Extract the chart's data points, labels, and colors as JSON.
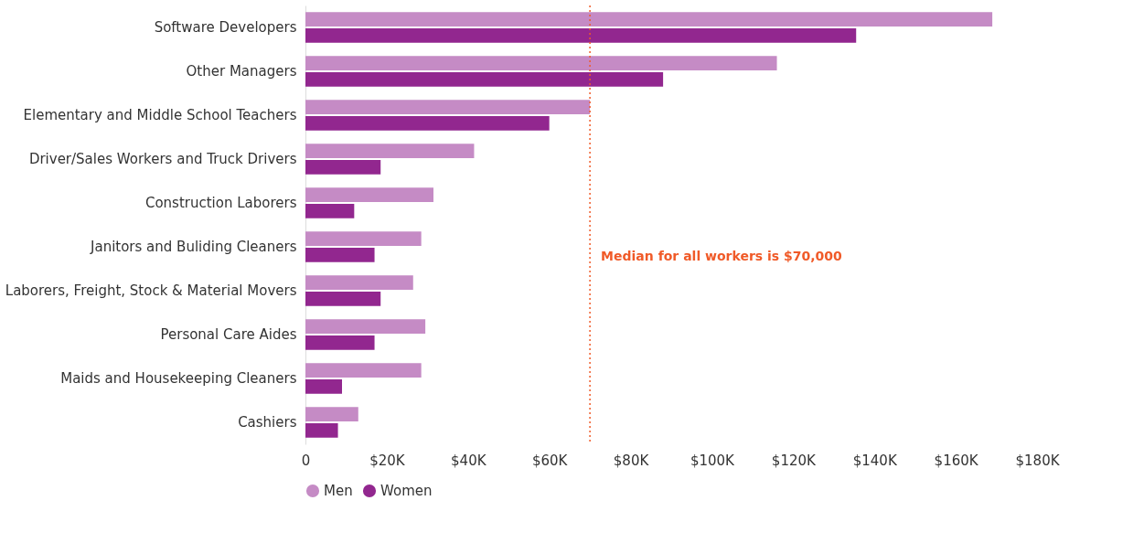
{
  "chart_data": {
    "type": "bar",
    "orientation": "horizontal",
    "categories": [
      "Software Developers",
      "Other Managers",
      "Elementary and Middle School Teachers",
      "Driver/Sales Workers and Truck Drivers",
      "Construction Laborers",
      "Janitors and Buliding Cleaners",
      "Laborers, Freight, Stock & Material Movers",
      "Personal Care Aides",
      "Maids and Housekeeping Cleaners",
      "Cashiers"
    ],
    "series": [
      {
        "name": "Men",
        "color": "#c58bc5",
        "values": [
          169000,
          116000,
          70000,
          41500,
          31500,
          28500,
          26500,
          29500,
          28500,
          13000
        ]
      },
      {
        "name": "Women",
        "color": "#92278f",
        "values": [
          135500,
          88000,
          60000,
          18500,
          12000,
          17000,
          18500,
          17000,
          9000,
          8000
        ]
      }
    ],
    "xlim": [
      0,
      180000
    ],
    "xticks": [
      0,
      {
        "value": 20000,
        "label": "$20K"
      },
      {
        "value": 40000,
        "label": "$40K"
      },
      {
        "value": 60000,
        "label": "$60K"
      },
      {
        "value": 80000,
        "label": "$80K"
      },
      {
        "value": 100000,
        "label": "$100K"
      },
      {
        "value": 120000,
        "label": "$120K"
      },
      {
        "value": 140000,
        "label": "$140K"
      },
      {
        "value": 160000,
        "label": "$160K"
      },
      {
        "value": 180000,
        "label": "$180K"
      }
    ],
    "ref_lines": [
      {
        "axis": "x",
        "value": 70000,
        "label": "Median for all workers is $70,000",
        "color": "#f05a28",
        "line_style": "dotted"
      }
    ],
    "grid": false,
    "stacked": false,
    "legend": "bottom"
  }
}
